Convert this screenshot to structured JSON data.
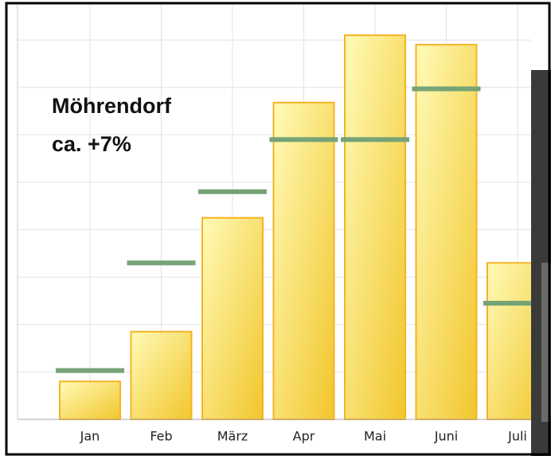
{
  "chart_data": {
    "type": "bar",
    "annotation": [
      "Möhrendorf",
      "ca. +7%"
    ],
    "categories": [
      "Jan",
      "Feb",
      "März",
      "Apr",
      "Mai",
      "Juni",
      "Juli"
    ],
    "values": [
      0.8,
      1.85,
      4.25,
      6.68,
      8.1,
      7.9,
      3.3
    ],
    "color": "#f7d84a",
    "target_values": [
      1.03,
      3.3,
      4.8,
      5.9,
      5.9,
      6.97,
      2.45
    ],
    "target_color": "#76a376",
    "ylim": [
      0,
      9
    ],
    "yticks": [
      0,
      1,
      2,
      3,
      4,
      5,
      6,
      7,
      8
    ],
    "grid": true
  }
}
